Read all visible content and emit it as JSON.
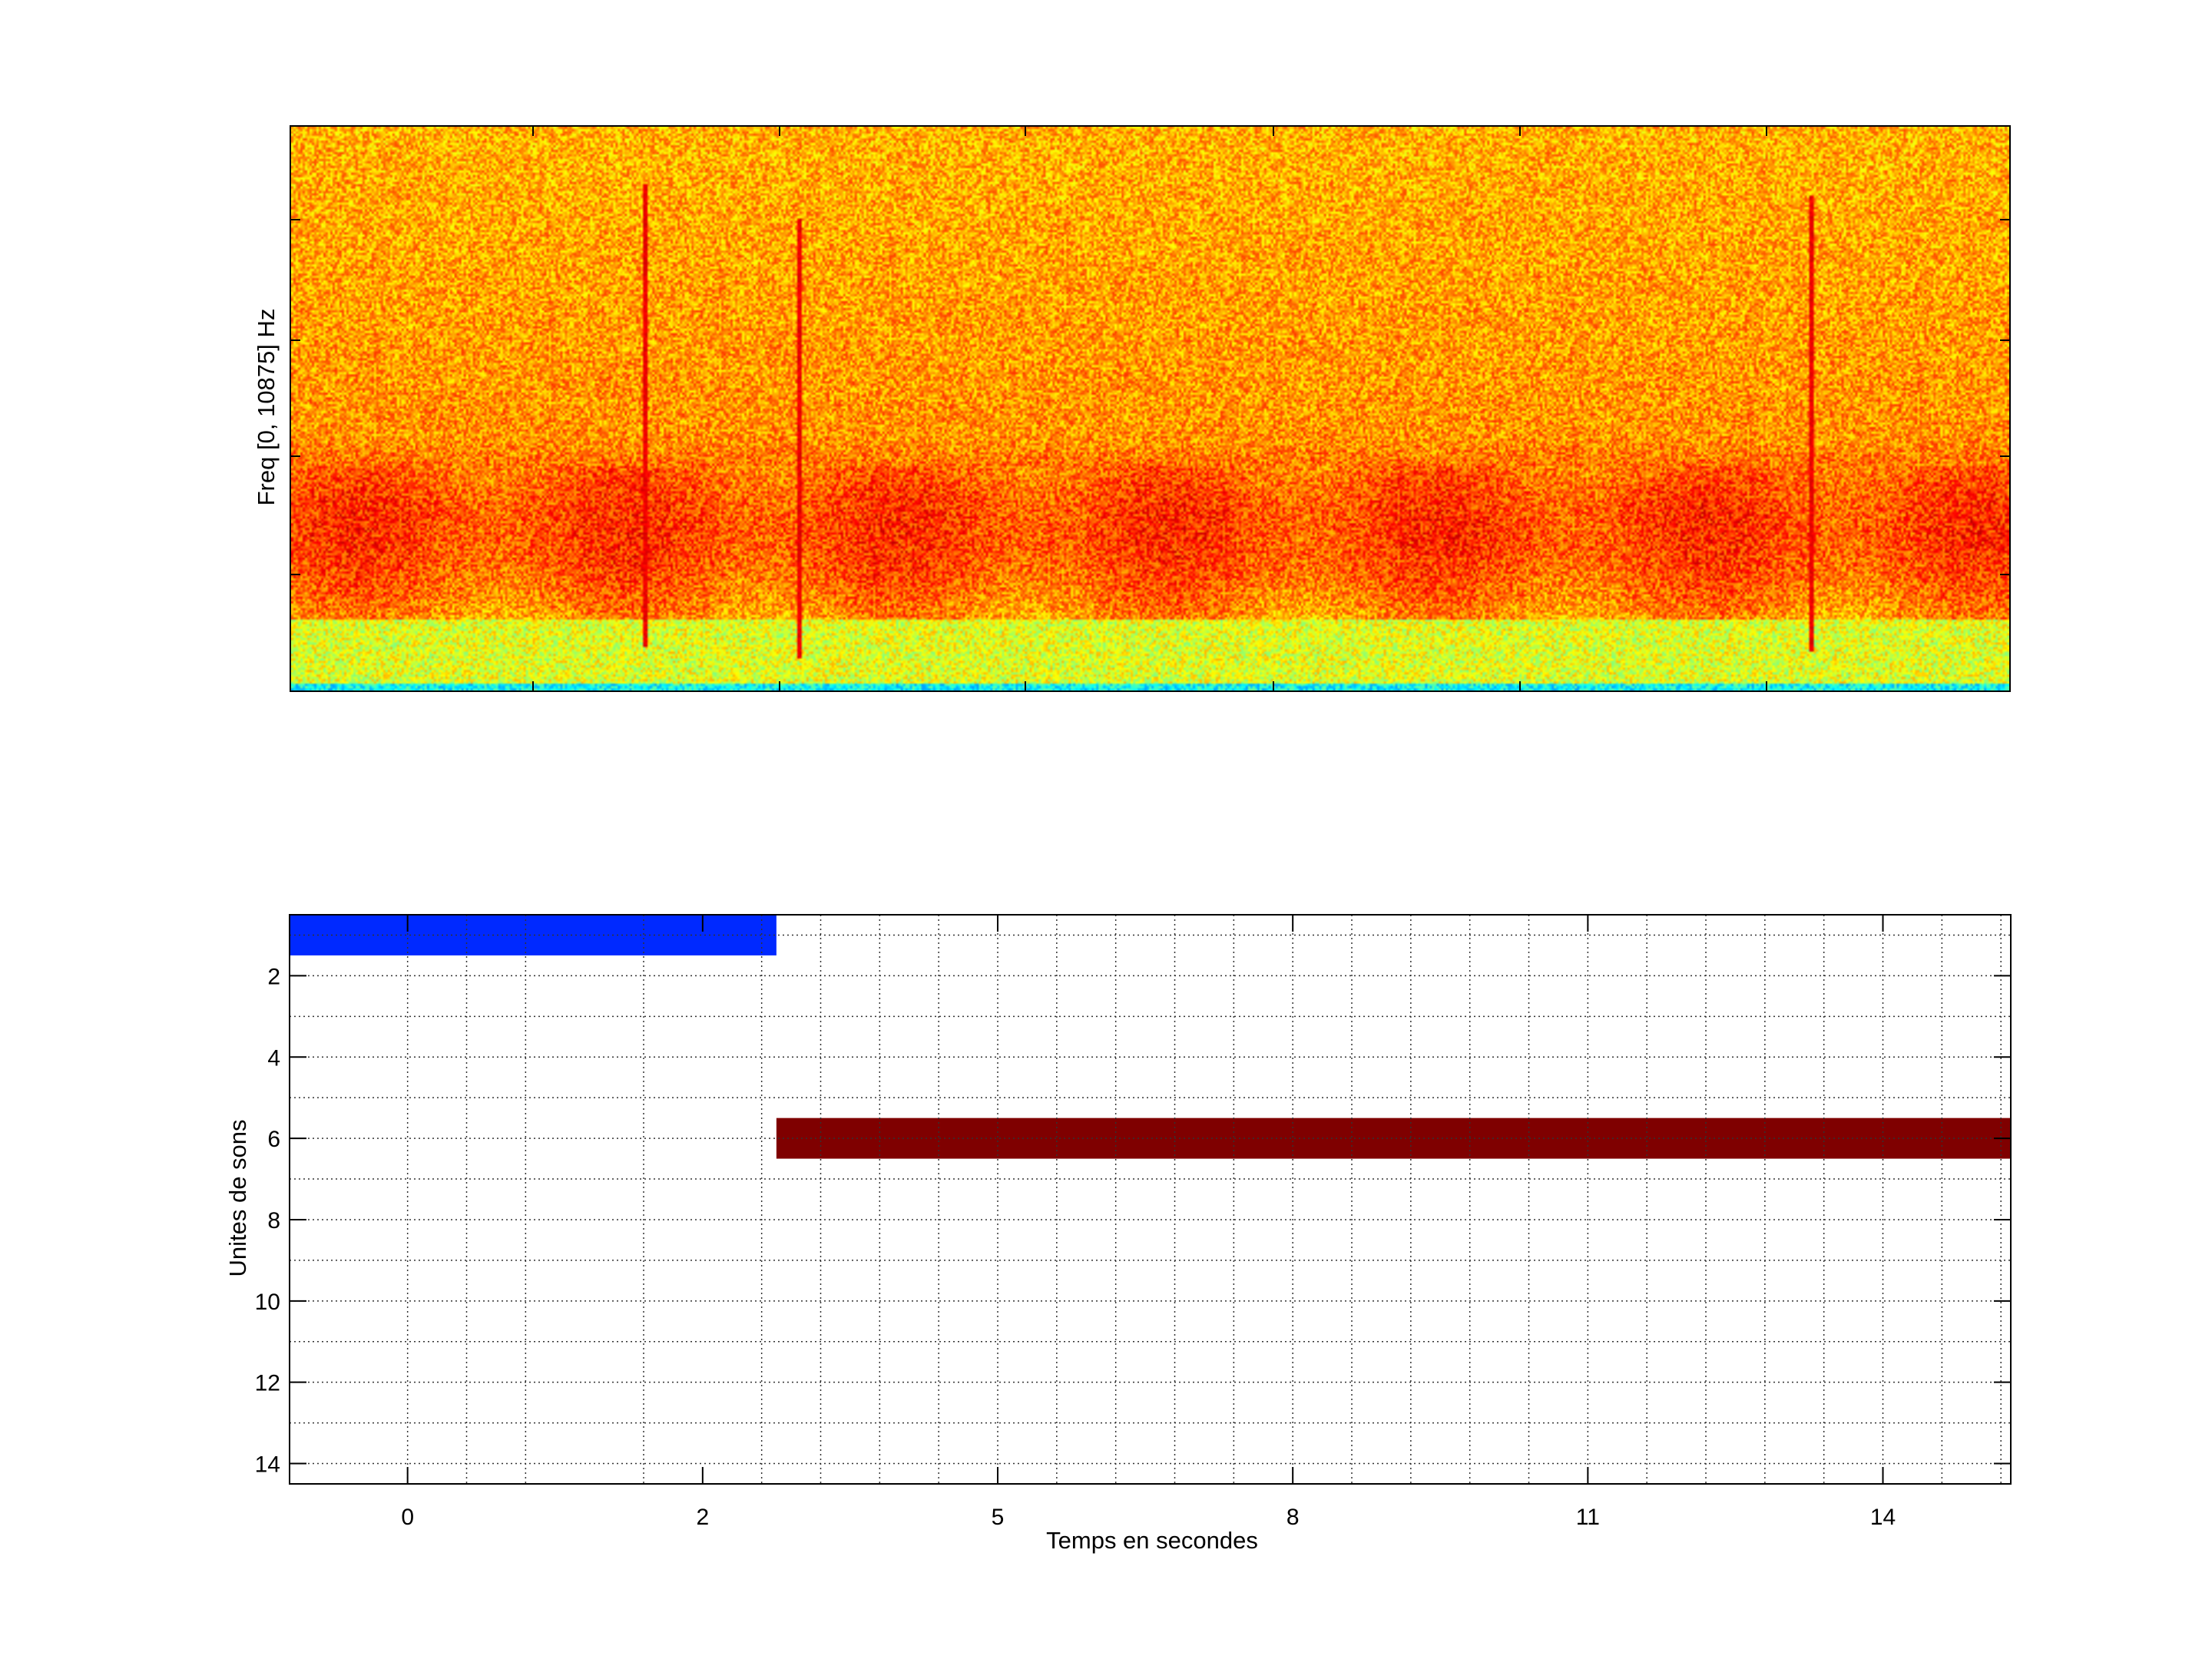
{
  "chart_data": [
    {
      "type": "heatmap",
      "title": "",
      "xlabel": "",
      "ylabel": "Freq [0, 10875] Hz",
      "ylim": [
        0,
        10875
      ],
      "colormap": "jet",
      "x_tick_labels": [],
      "y_tick_labels": [],
      "description_of_features": []
    },
    {
      "type": "bar",
      "orientation": "horizontal-segments",
      "title": "",
      "xlabel": "Temps en secondes",
      "ylabel": "Unites de sons",
      "x_tick_labels": [
        "0",
        "2",
        "5",
        "8",
        "11",
        "14"
      ],
      "y_tick_labels": [
        "2",
        "4",
        "6",
        "8",
        "10",
        "12",
        "14"
      ],
      "xlim": [
        -0.8,
        15.3
      ],
      "ylim": [
        0.5,
        14.5
      ],
      "y_reversed": true,
      "grid": true,
      "segments": [
        {
          "unit": 1,
          "start": -0.8,
          "end": 2.75,
          "color": "#0029ff"
        },
        {
          "unit": 6,
          "start": 2.75,
          "end": 15.3,
          "color": "#7f0000"
        }
      ]
    }
  ]
}
